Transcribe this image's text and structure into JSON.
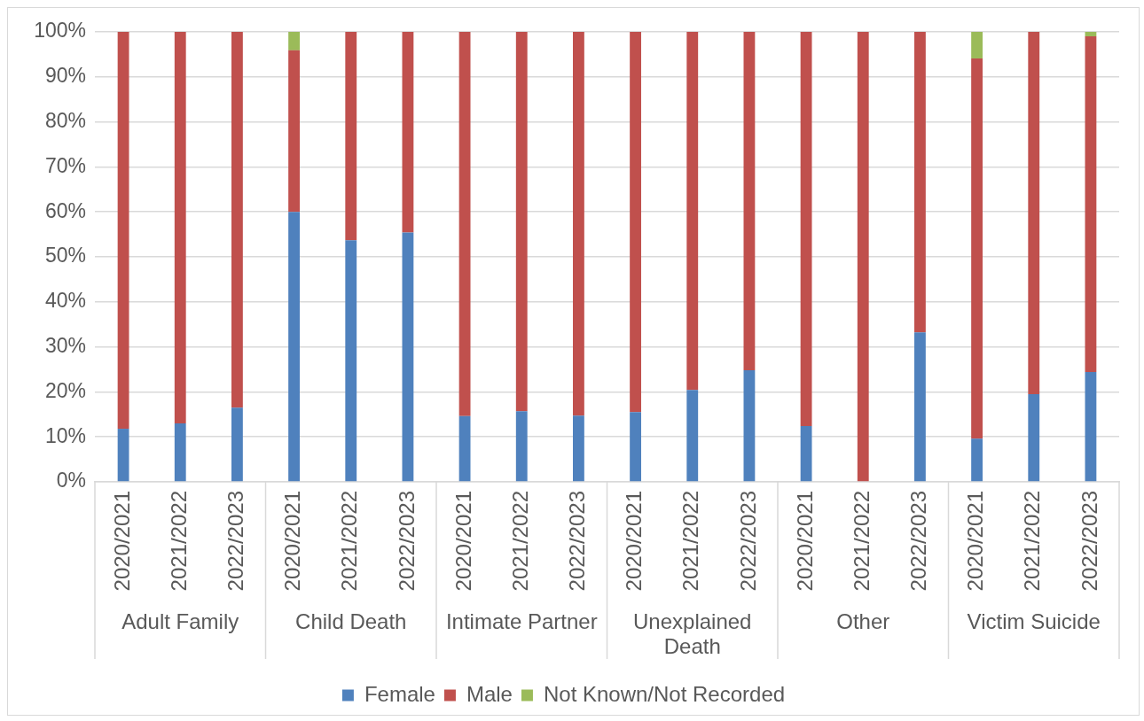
{
  "chart_data": {
    "type": "bar",
    "stacked": true,
    "categories": [
      "2020/2021",
      "2021/2022",
      "2022/2023",
      "2020/2021",
      "2021/2022",
      "2022/2023",
      "2020/2021",
      "2021/2022",
      "2022/2023",
      "2020/2021",
      "2021/2022",
      "2022/2023",
      "2020/2021",
      "2021/2022",
      "2022/2023",
      "2020/2021",
      "2021/2022",
      "2022/2023"
    ],
    "series": [
      {
        "name": "Female",
        "color": "#4f81bd",
        "values": [
          11.8,
          13.0,
          16.5,
          60,
          53.7,
          55.4,
          14.6,
          15.7,
          14.7,
          15.5,
          20.4,
          24.8,
          12.4,
          0,
          33.2,
          9.6,
          19.5,
          24.4
        ]
      },
      {
        "name": "Male",
        "color": "#c0504d",
        "values": [
          88.2,
          87.0,
          83.5,
          35.9,
          46.3,
          44.6,
          85.4,
          84.3,
          85.3,
          84.5,
          79.6,
          75.2,
          87.6,
          100,
          66.8,
          84.5,
          80.5,
          74.6
        ]
      },
      {
        "name": "Not Known/Not Recorded",
        "color": "#9bbb59",
        "values": [
          0,
          0,
          0,
          4.1,
          0,
          0,
          0,
          0,
          0,
          0,
          0,
          0,
          0,
          0,
          0,
          5.9,
          0,
          1.0
        ]
      }
    ],
    "ylim": [
      0,
      100
    ],
    "yticks": [
      {
        "value": 0,
        "label": "0%"
      },
      {
        "value": 10,
        "label": "10%"
      },
      {
        "value": 20,
        "label": "20%"
      },
      {
        "value": 30,
        "label": "30%"
      },
      {
        "value": 40,
        "label": "40%"
      },
      {
        "value": 50,
        "label": "50%"
      },
      {
        "value": 60,
        "label": "60%"
      },
      {
        "value": 70,
        "label": "70%"
      },
      {
        "value": 80,
        "label": "80%"
      },
      {
        "value": 90,
        "label": "90%"
      },
      {
        "value": 100,
        "label": "100%"
      }
    ],
    "grid": "y",
    "legend": "bottom",
    "annotations": [
      "Adult Family",
      "Child Death",
      "Intimate Partner",
      "Unexplained Death",
      "Other",
      "Victim Suicide"
    ]
  }
}
